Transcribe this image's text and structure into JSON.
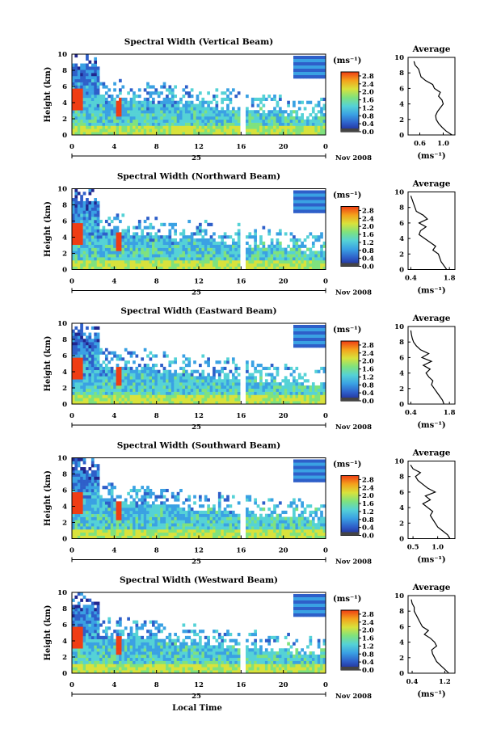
{
  "figure": {
    "xlabel": "Local Time",
    "avg_title": "Average",
    "ylabel": "Height (km)",
    "date_day": "25",
    "date_month_year": "Nov 2008",
    "cb_unit": "(ms⁻¹)",
    "avg_xlabel": "(ms⁻¹)",
    "colors": {
      "colormap": [
        "#21268f",
        "#2e5fc9",
        "#3aa1e3",
        "#55d2d6",
        "#7fe27e",
        "#d8e23c",
        "#f4a21c",
        "#ef3d14"
      ],
      "cb_bottom_block": "#444444",
      "profile_line": "#000000"
    }
  },
  "chart_data": [
    {
      "type": "heatmap",
      "title": "Spectral Width (Vertical Beam)",
      "x_ticks": [
        "0",
        "4",
        "8",
        "12",
        "16",
        "20",
        "0"
      ],
      "x_range_hours": [
        0,
        24
      ],
      "y_ticks": [
        "0",
        "2",
        "4",
        "6",
        "8",
        "10"
      ],
      "ylim_km": [
        0,
        10
      ],
      "colorbar": {
        "ticks": [
          "0.0",
          "0.4",
          "0.8",
          "1.2",
          "1.6",
          "2.0",
          "2.4",
          "2.8"
        ],
        "range": [
          0,
          3.0
        ]
      },
      "average_profile": {
        "x_ticks": [
          "0.6",
          "1.0"
        ],
        "xlim": [
          0.4,
          1.2
        ],
        "height_km": [
          0,
          0.5,
          1,
          1.5,
          2,
          2.5,
          3,
          3.5,
          4,
          4.5,
          5,
          5.5,
          6,
          6.5,
          7,
          7.5,
          8,
          8.5,
          9,
          9.5
        ],
        "width": [
          1.15,
          1.05,
          0.98,
          0.92,
          0.88,
          0.87,
          0.9,
          0.95,
          1.0,
          0.98,
          0.92,
          0.95,
          0.85,
          0.82,
          0.7,
          0.62,
          0.6,
          0.58,
          0.52,
          0.5
        ]
      }
    },
    {
      "type": "heatmap",
      "title": "Spectral Width (Northward Beam)",
      "x_ticks": [
        "0",
        "4",
        "8",
        "12",
        "16",
        "20",
        "0"
      ],
      "x_range_hours": [
        0,
        24
      ],
      "y_ticks": [
        "0",
        "2",
        "4",
        "6",
        "8",
        "10"
      ],
      "ylim_km": [
        0,
        10
      ],
      "colorbar": {
        "ticks": [
          "0.0",
          "0.4",
          "0.8",
          "1.2",
          "1.6",
          "2.0",
          "2.4",
          "2.8"
        ],
        "range": [
          0,
          3.0
        ]
      },
      "average_profile": {
        "x_ticks": [
          "0.4",
          "1.8"
        ],
        "xlim": [
          0.3,
          2.0
        ],
        "height_km": [
          0,
          0.5,
          1,
          1.5,
          2,
          2.5,
          3,
          3.5,
          4,
          4.5,
          5,
          5.5,
          6,
          6.5,
          7,
          7.5,
          8,
          8.5,
          9,
          9.5
        ],
        "width": [
          1.7,
          1.6,
          1.5,
          1.45,
          1.4,
          1.2,
          1.3,
          1.1,
          0.9,
          0.7,
          0.75,
          0.95,
          0.7,
          1.0,
          0.85,
          0.6,
          0.55,
          0.5,
          0.45,
          0.4
        ]
      }
    },
    {
      "type": "heatmap",
      "title": "Spectral Width (Eastward Beam)",
      "x_ticks": [
        "0",
        "4",
        "8",
        "12",
        "16",
        "20",
        "0"
      ],
      "x_range_hours": [
        0,
        24
      ],
      "y_ticks": [
        "0",
        "2",
        "4",
        "6",
        "8",
        "10"
      ],
      "ylim_km": [
        0,
        10
      ],
      "colorbar": {
        "ticks": [
          "0.0",
          "0.4",
          "0.8",
          "1.2",
          "1.6",
          "2.0",
          "2.4",
          "2.8"
        ],
        "range": [
          0,
          3.0
        ]
      },
      "average_profile": {
        "x_ticks": [
          "0.4",
          "1.8"
        ],
        "xlim": [
          0.3,
          2.0
        ],
        "height_km": [
          0,
          0.5,
          1,
          1.5,
          2,
          2.5,
          3,
          3.5,
          4,
          4.5,
          5,
          5.5,
          6,
          6.5,
          7,
          7.5,
          8,
          8.5,
          9,
          9.5
        ],
        "width": [
          1.6,
          1.55,
          1.45,
          1.35,
          1.25,
          1.15,
          1.2,
          1.05,
          0.95,
          1.1,
          0.85,
          1.15,
          0.8,
          1.05,
          0.75,
          0.6,
          0.5,
          0.45,
          0.42,
          0.4
        ]
      }
    },
    {
      "type": "heatmap",
      "title": "Spectral Width (Southward Beam)",
      "x_ticks": [
        "0",
        "4",
        "8",
        "12",
        "16",
        "20",
        "0"
      ],
      "x_range_hours": [
        0,
        24
      ],
      "y_ticks": [
        "0",
        "2",
        "4",
        "6",
        "8",
        "10"
      ],
      "ylim_km": [
        0,
        10
      ],
      "colorbar": {
        "ticks": [
          "0.0",
          "0.4",
          "0.8",
          "1.2",
          "1.6",
          "2.0",
          "2.4",
          "2.8"
        ],
        "range": [
          0,
          3.0
        ]
      },
      "average_profile": {
        "x_ticks": [
          "0.5",
          "1.0"
        ],
        "xlim": [
          0.4,
          1.35
        ],
        "height_km": [
          0,
          0.5,
          1,
          1.5,
          2,
          2.5,
          3,
          3.5,
          4,
          4.5,
          5,
          5.5,
          6,
          6.5,
          7,
          7.5,
          8,
          8.5,
          9,
          9.5
        ],
        "width": [
          1.25,
          1.2,
          1.1,
          1.0,
          0.95,
          0.9,
          0.85,
          0.9,
          0.8,
          0.7,
          0.85,
          0.75,
          0.95,
          0.8,
          0.7,
          0.6,
          0.55,
          0.65,
          0.5,
          0.45
        ]
      }
    },
    {
      "type": "heatmap",
      "title": "Spectral Width (Westward Beam)",
      "x_ticks": [
        "0",
        "4",
        "8",
        "12",
        "16",
        "20",
        "0"
      ],
      "x_range_hours": [
        0,
        24
      ],
      "y_ticks": [
        "0",
        "2",
        "4",
        "6",
        "8",
        "10"
      ],
      "ylim_km": [
        0,
        10
      ],
      "colorbar": {
        "ticks": [
          "0.0",
          "0.4",
          "0.8",
          "1.2",
          "1.6",
          "2.0",
          "2.4",
          "2.8"
        ],
        "range": [
          0,
          3.0
        ]
      },
      "average_profile": {
        "x_ticks": [
          "0.4",
          "1.2"
        ],
        "xlim": [
          0.3,
          1.45
        ],
        "height_km": [
          0,
          0.5,
          1,
          1.5,
          2,
          2.5,
          3,
          3.5,
          4,
          4.5,
          5,
          5.5,
          6,
          6.5,
          7,
          7.5,
          8,
          8.5,
          9,
          9.5
        ],
        "width": [
          1.3,
          1.2,
          1.1,
          1.0,
          0.95,
          0.9,
          0.88,
          1.0,
          0.95,
          0.85,
          0.7,
          0.8,
          0.65,
          0.6,
          0.55,
          0.5,
          0.45,
          0.45,
          0.4,
          0.38
        ]
      }
    }
  ]
}
